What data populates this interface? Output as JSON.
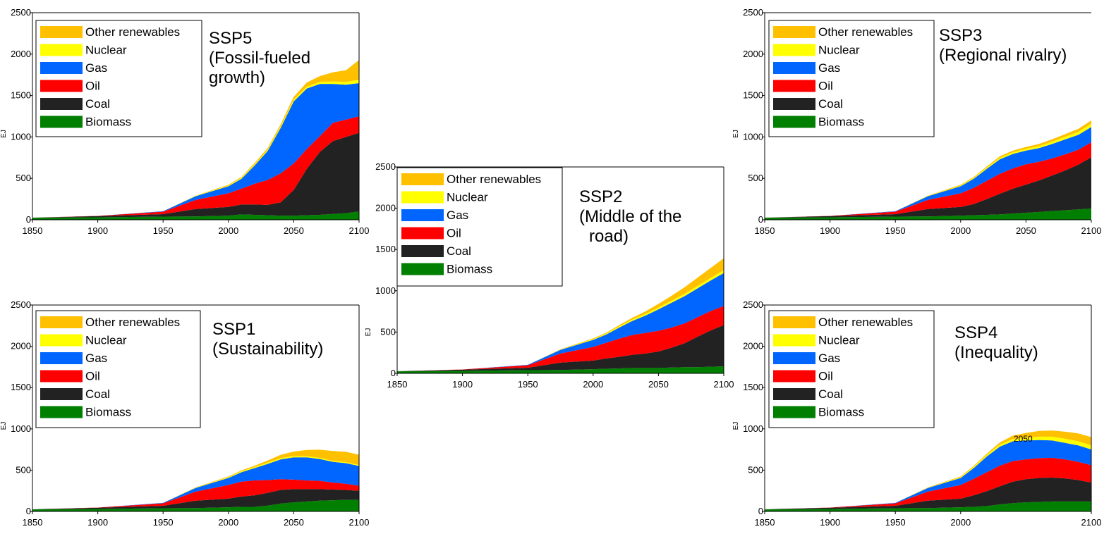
{
  "series_colors": {
    "Biomass": "#007f00",
    "Coal": "#222222",
    "Oil": "#ff0000",
    "Gas": "#0066ff",
    "Nuclear": "#ffff00",
    "Other renewables": "#ffc000"
  },
  "chart_data": [
    {
      "id": "ssp5",
      "type": "area",
      "stacked": true,
      "title": "SSP5",
      "subtitle": "(Fossil-fueled growth)",
      "title_lines": [
        "SSP5",
        "(Fossil-fueled",
        "growth)"
      ],
      "xlabel": "",
      "ylabel": "EJ",
      "xlim": [
        1850,
        2100
      ],
      "ylim": [
        0,
        2500
      ],
      "x_ticks": [
        "1850",
        "1900",
        "1950",
        "2000",
        "2050",
        "2100"
      ],
      "y_ticks": [
        "0",
        "500",
        "1000",
        "1500",
        "2000",
        "2500"
      ],
      "grid": false,
      "legend_position": "top-left",
      "legend": [
        "Other renewables",
        "Nuclear",
        "Gas",
        "Oil",
        "Coal",
        "Biomass"
      ],
      "x": [
        1850,
        1900,
        1950,
        1975,
        2000,
        2010,
        2020,
        2030,
        2040,
        2050,
        2060,
        2070,
        2080,
        2090,
        2100
      ],
      "series": [
        {
          "name": "Biomass",
          "values": [
            25,
            30,
            38,
            40,
            50,
            65,
            60,
            55,
            50,
            50,
            55,
            60,
            70,
            80,
            100
          ]
        },
        {
          "name": "Coal",
          "values": [
            1,
            15,
            30,
            90,
            105,
            120,
            125,
            125,
            160,
            310,
            560,
            760,
            880,
            920,
            950
          ]
        },
        {
          "name": "Oil",
          "values": [
            0,
            2,
            30,
            110,
            165,
            190,
            250,
            300,
            350,
            320,
            240,
            190,
            220,
            210,
            200
          ]
        },
        {
          "name": "Gas",
          "values": [
            0,
            0,
            5,
            45,
            85,
            120,
            220,
            350,
            550,
            750,
            730,
            630,
            470,
            420,
            400
          ]
        },
        {
          "name": "Nuclear",
          "values": [
            0,
            0,
            0,
            4,
            10,
            12,
            14,
            15,
            18,
            20,
            22,
            25,
            30,
            35,
            40
          ]
        },
        {
          "name": "Other renewables",
          "values": [
            0,
            0,
            0,
            3,
            8,
            10,
            15,
            20,
            25,
            35,
            50,
            70,
            110,
            140,
            240
          ]
        }
      ]
    },
    {
      "id": "ssp2",
      "type": "area",
      "stacked": true,
      "title": "SSP2",
      "subtitle": "(Middle of the road)",
      "title_lines": [
        "SSP2",
        "(Middle of the",
        "road)"
      ],
      "xlabel": "",
      "ylabel": "EJ",
      "xlim": [
        1850,
        2100
      ],
      "ylim": [
        0,
        2500
      ],
      "x_ticks": [
        "1850",
        "1900",
        "1950",
        "2000",
        "2050",
        "2100"
      ],
      "y_ticks": [
        "0",
        "500",
        "1000",
        "1500",
        "2000",
        "2500"
      ],
      "grid": false,
      "legend_position": "top-left",
      "legend": [
        "Other renewables",
        "Nuclear",
        "Gas",
        "Oil",
        "Coal",
        "Biomass"
      ],
      "x": [
        1850,
        1900,
        1950,
        1975,
        2000,
        2010,
        2020,
        2030,
        2040,
        2050,
        2060,
        2070,
        2080,
        2090,
        2100
      ],
      "series": [
        {
          "name": "Biomass",
          "values": [
            25,
            30,
            38,
            40,
            50,
            55,
            60,
            65,
            65,
            65,
            70,
            75,
            75,
            80,
            85
          ]
        },
        {
          "name": "Coal",
          "values": [
            1,
            15,
            30,
            90,
            105,
            125,
            140,
            160,
            175,
            200,
            240,
            290,
            370,
            440,
            500
          ]
        },
        {
          "name": "Oil",
          "values": [
            0,
            2,
            30,
            110,
            165,
            190,
            220,
            240,
            250,
            250,
            245,
            240,
            235,
            235,
            230
          ]
        },
        {
          "name": "Gas",
          "values": [
            0,
            0,
            5,
            45,
            85,
            100,
            135,
            170,
            210,
            260,
            300,
            330,
            350,
            370,
            400
          ]
        },
        {
          "name": "Nuclear",
          "values": [
            0,
            0,
            0,
            4,
            10,
            12,
            15,
            18,
            20,
            22,
            25,
            28,
            30,
            32,
            35
          ]
        },
        {
          "name": "Other renewables",
          "values": [
            0,
            0,
            0,
            3,
            8,
            10,
            15,
            20,
            30,
            45,
            60,
            80,
            100,
            120,
            145
          ]
        }
      ]
    },
    {
      "id": "ssp3",
      "type": "area",
      "stacked": true,
      "title": "SSP3",
      "subtitle": "(Regional rivalry)",
      "title_lines": [
        "SSP3",
        "(Regional rivalry)"
      ],
      "xlabel": "",
      "ylabel": "EJ",
      "xlim": [
        1850,
        2100
      ],
      "ylim": [
        0,
        2500
      ],
      "x_ticks": [
        "1850",
        "1900",
        "1950",
        "2000",
        "2050",
        "2100"
      ],
      "y_ticks": [
        "0",
        "500",
        "1000",
        "1500",
        "2000",
        "2500"
      ],
      "grid": false,
      "legend_position": "top-left",
      "legend": [
        "Other renewables",
        "Nuclear",
        "Gas",
        "Oil",
        "Coal",
        "Biomass"
      ],
      "x": [
        1850,
        1900,
        1950,
        1975,
        2000,
        2010,
        2020,
        2030,
        2040,
        2050,
        2060,
        2070,
        2080,
        2090,
        2100
      ],
      "series": [
        {
          "name": "Biomass",
          "values": [
            25,
            30,
            38,
            40,
            50,
            55,
            60,
            65,
            75,
            85,
            95,
            105,
            115,
            125,
            135
          ]
        },
        {
          "name": "Coal",
          "values": [
            1,
            15,
            30,
            90,
            105,
            135,
            190,
            250,
            300,
            340,
            380,
            430,
            480,
            540,
            620
          ]
        },
        {
          "name": "Oil",
          "values": [
            0,
            2,
            30,
            110,
            165,
            195,
            220,
            240,
            245,
            245,
            225,
            205,
            195,
            180,
            180
          ]
        },
        {
          "name": "Gas",
          "values": [
            0,
            0,
            5,
            45,
            85,
            110,
            145,
            175,
            175,
            165,
            165,
            175,
            180,
            180,
            185
          ]
        },
        {
          "name": "Nuclear",
          "values": [
            0,
            0,
            0,
            4,
            10,
            12,
            15,
            18,
            20,
            22,
            25,
            28,
            32,
            36,
            40
          ]
        },
        {
          "name": "Other renewables",
          "values": [
            0,
            0,
            0,
            3,
            8,
            10,
            14,
            18,
            20,
            22,
            25,
            28,
            32,
            36,
            40
          ]
        }
      ]
    },
    {
      "id": "ssp1",
      "type": "area",
      "stacked": true,
      "title": "SSP1",
      "subtitle": "(Sustainability)",
      "title_lines": [
        "SSP1",
        "(Sustainability)"
      ],
      "xlabel": "",
      "ylabel": "EJ",
      "xlim": [
        1850,
        2100
      ],
      "ylim": [
        0,
        2500
      ],
      "x_ticks": [
        "1850",
        "1900",
        "1950",
        "2000",
        "2050",
        "2100"
      ],
      "y_ticks": [
        "0",
        "500",
        "1000",
        "1500",
        "2000",
        "2500"
      ],
      "grid": false,
      "legend_position": "top-left",
      "legend": [
        "Other renewables",
        "Nuclear",
        "Gas",
        "Oil",
        "Coal",
        "Biomass"
      ],
      "x": [
        1850,
        1900,
        1950,
        1975,
        2000,
        2010,
        2020,
        2030,
        2040,
        2050,
        2060,
        2070,
        2080,
        2090,
        2100
      ],
      "series": [
        {
          "name": "Biomass",
          "values": [
            25,
            30,
            38,
            40,
            50,
            55,
            55,
            70,
            95,
            110,
            120,
            130,
            135,
            140,
            140
          ]
        },
        {
          "name": "Coal",
          "values": [
            1,
            15,
            30,
            90,
            105,
            125,
            140,
            155,
            165,
            160,
            150,
            140,
            130,
            120,
            110
          ]
        },
        {
          "name": "Oil",
          "values": [
            0,
            2,
            30,
            110,
            165,
            180,
            180,
            155,
            130,
            115,
            105,
            100,
            85,
            75,
            60
          ]
        },
        {
          "name": "Gas",
          "values": [
            0,
            0,
            5,
            45,
            85,
            115,
            150,
            195,
            240,
            270,
            280,
            265,
            250,
            250,
            240
          ]
        },
        {
          "name": "Nuclear",
          "values": [
            0,
            0,
            0,
            4,
            10,
            12,
            14,
            16,
            16,
            15,
            14,
            13,
            12,
            12,
            12
          ]
        },
        {
          "name": "Other renewables",
          "values": [
            0,
            0,
            0,
            3,
            8,
            10,
            15,
            25,
            40,
            55,
            75,
            100,
            120,
            125,
            125
          ]
        }
      ]
    },
    {
      "id": "ssp4",
      "type": "area",
      "stacked": true,
      "title": "SSP4",
      "subtitle": "(Inequality)",
      "title_lines": [
        "SSP4",
        "(Inequality)"
      ],
      "annotation": "2050",
      "xlabel": "",
      "ylabel": "EJ",
      "xlim": [
        1850,
        2100
      ],
      "ylim": [
        0,
        2500
      ],
      "x_ticks": [
        "1850",
        "1900",
        "1950",
        "2000",
        "2100"
      ],
      "y_ticks": [
        "0",
        "500",
        "1000",
        "1500",
        "2000",
        "2500"
      ],
      "grid": false,
      "legend_position": "top-left",
      "legend": [
        "Other renewables",
        "Nuclear",
        "Gas",
        "Oil",
        "Coal",
        "Biomass"
      ],
      "x": [
        1850,
        1900,
        1950,
        1975,
        2000,
        2010,
        2020,
        2030,
        2040,
        2050,
        2060,
        2070,
        2080,
        2090,
        2100
      ],
      "series": [
        {
          "name": "Biomass",
          "values": [
            25,
            30,
            38,
            40,
            50,
            55,
            65,
            85,
            100,
            110,
            115,
            120,
            120,
            120,
            120
          ]
        },
        {
          "name": "Coal",
          "values": [
            1,
            15,
            30,
            90,
            105,
            140,
            180,
            220,
            260,
            280,
            290,
            290,
            280,
            260,
            230
          ]
        },
        {
          "name": "Oil",
          "values": [
            0,
            2,
            30,
            110,
            165,
            200,
            230,
            250,
            250,
            240,
            240,
            240,
            230,
            220,
            210
          ]
        },
        {
          "name": "Gas",
          "values": [
            0,
            0,
            5,
            45,
            85,
            130,
            190,
            230,
            240,
            230,
            220,
            210,
            200,
            200,
            190
          ]
        },
        {
          "name": "Nuclear",
          "values": [
            0,
            0,
            0,
            4,
            10,
            15,
            20,
            25,
            28,
            30,
            40,
            45,
            50,
            50,
            50
          ]
        },
        {
          "name": "Other renewables",
          "values": [
            0,
            0,
            0,
            3,
            8,
            10,
            15,
            25,
            40,
            60,
            70,
            75,
            85,
            95,
            100
          ]
        }
      ]
    }
  ]
}
